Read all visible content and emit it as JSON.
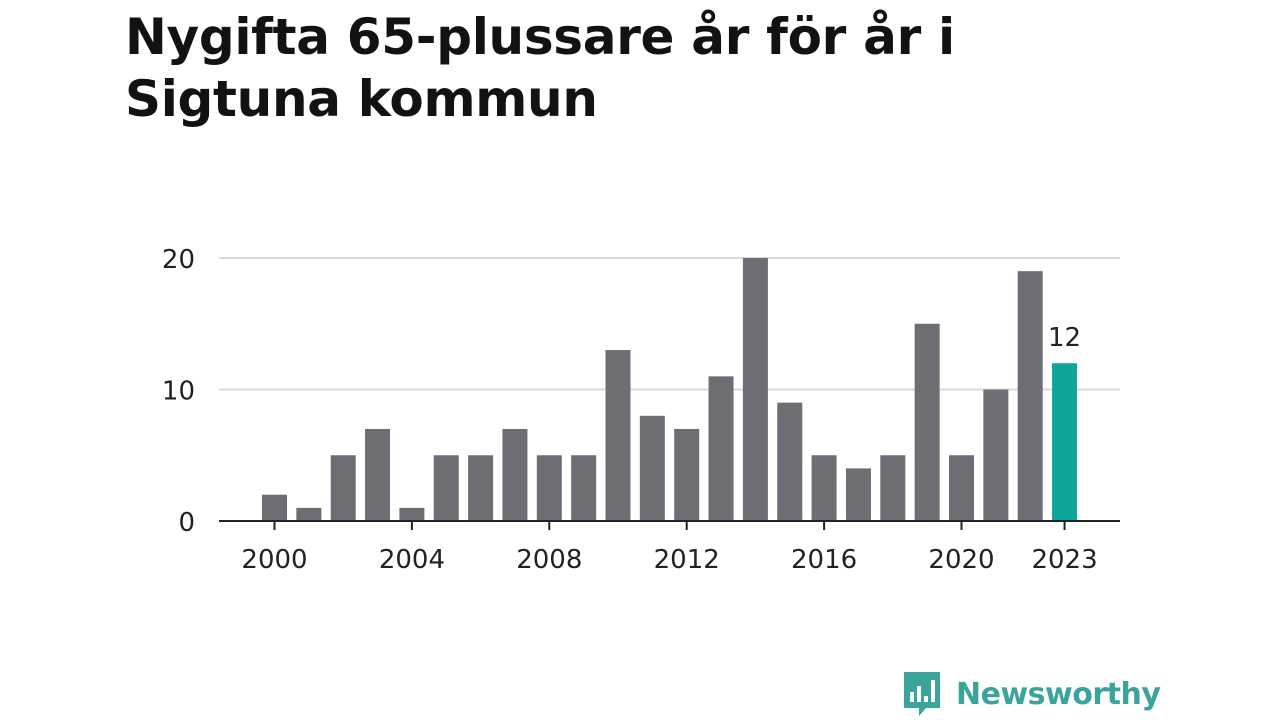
{
  "title": "Nygifta 65-plussare år för år i Sigtuna kommun",
  "brand": {
    "name": "Newsworthy",
    "icon": "bar-chart-speech-bubble-icon",
    "color": "#3aa39a"
  },
  "colors": {
    "bar": "#6e6d73",
    "highlight": "#0ea59a",
    "grid": "#d9d9d9",
    "axis": "#222222",
    "text": "#222222"
  },
  "chart_data": {
    "type": "bar",
    "title": "Nygifta 65-plussare år för år i Sigtuna kommun",
    "xlabel": "",
    "ylabel": "",
    "ylim": [
      0,
      20
    ],
    "yticks": [
      0,
      10,
      20
    ],
    "xtick_labels": [
      "2000",
      "2004",
      "2008",
      "2012",
      "2016",
      "2020",
      "2023"
    ],
    "grid": true,
    "legend": false,
    "categories": [
      "2000",
      "2001",
      "2002",
      "2003",
      "2004",
      "2005",
      "2006",
      "2007",
      "2008",
      "2009",
      "2010",
      "2011",
      "2012",
      "2013",
      "2014",
      "2015",
      "2016",
      "2017",
      "2018",
      "2019",
      "2020",
      "2021",
      "2022",
      "2023"
    ],
    "values": [
      2,
      1,
      5,
      7,
      1,
      5,
      5,
      7,
      5,
      5,
      13,
      8,
      7,
      11,
      20,
      9,
      5,
      4,
      5,
      15,
      5,
      10,
      19,
      12
    ],
    "highlight": {
      "category": "2023",
      "label": "12"
    }
  }
}
